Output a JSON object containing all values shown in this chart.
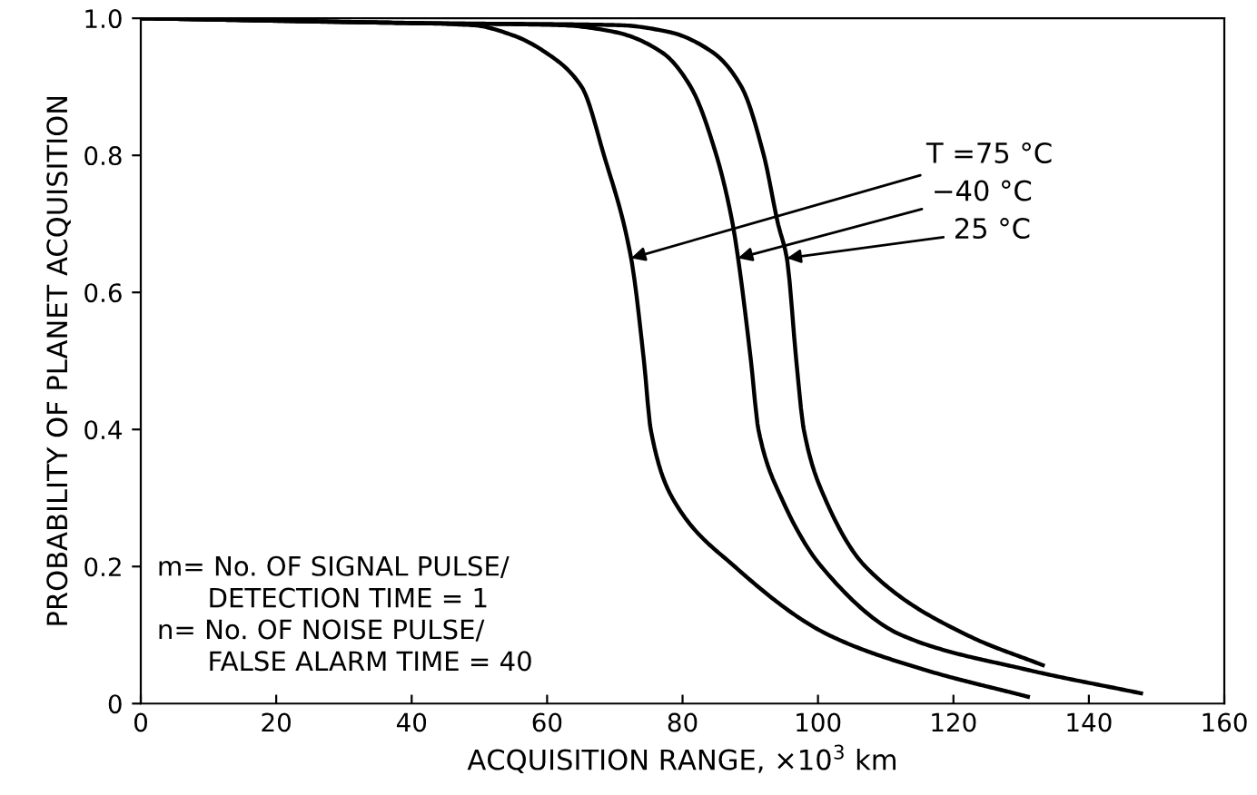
{
  "chart_data": {
    "type": "line",
    "xlabel": "ACQUISITION RANGE, ×10$^{3}$ km",
    "ylabel": "PROBABILITY OF PLANET ACQUISITION",
    "xlim": [
      0,
      160
    ],
    "ylim": [
      0,
      1.0
    ],
    "xticks": [
      0,
      20,
      40,
      60,
      80,
      100,
      120,
      140,
      160
    ],
    "yticks": [
      0,
      0.2,
      0.4,
      0.6,
      0.8,
      {
        "value": 1.0,
        "label": "1.0"
      }
    ],
    "grid": false,
    "marker": "none",
    "line_style": "solid",
    "series": [
      {
        "color": "#000000",
        "x": [
          0,
          30,
          49,
          55,
          59.8,
          65.1,
          68.4,
          72.4,
          74.3,
          75.3,
          78.5,
          87.7,
          101.6,
          115.5,
          131
        ],
        "values": [
          1.0,
          0.995,
          0.99,
          0.975,
          0.95,
          0.9,
          0.8,
          0.65,
          0.5,
          0.4,
          0.3,
          0.2,
          0.1,
          0.05,
          0.01
        ]
      },
      {
        "color": "#000000",
        "x": [
          0,
          40,
          62,
          70,
          77,
          81.2,
          85,
          87.4,
          88.2,
          90.1,
          91.2,
          94.6,
          100.5,
          112.3,
          130.6,
          147.7
        ],
        "values": [
          1.0,
          0.993,
          0.99,
          0.98,
          0.95,
          0.9,
          0.8,
          0.7,
          0.65,
          0.5,
          0.4,
          0.3,
          0.2,
          0.1,
          0.05,
          0.015
        ]
      },
      {
        "color": "#000000",
        "x": [
          0,
          40,
          70.5,
          78,
          84.5,
          88.7,
          92,
          94.1,
          95.4,
          96.8,
          97.9,
          101,
          107,
          122,
          133.2
        ],
        "values": [
          1.0,
          0.993,
          0.99,
          0.98,
          0.95,
          0.9,
          0.8,
          0.7,
          0.65,
          0.5,
          0.4,
          0.3,
          0.2,
          0.1,
          0.056
        ]
      }
    ],
    "annotations": [
      {
        "text": "T =75 °C",
        "x": 72.4,
        "y": 0.65
      },
      {
        "text": "−40 °C",
        "x": 88.2,
        "y": 0.65
      },
      {
        "text": "25 °C",
        "x": 95.4,
        "y": 0.65
      },
      "m= No. OF SIGNAL PULSE/\n      DETECTION TIME = 1\nn= No. OF NOISE PULSE/\n      FALSE ALARM TIME = 40"
    ]
  }
}
